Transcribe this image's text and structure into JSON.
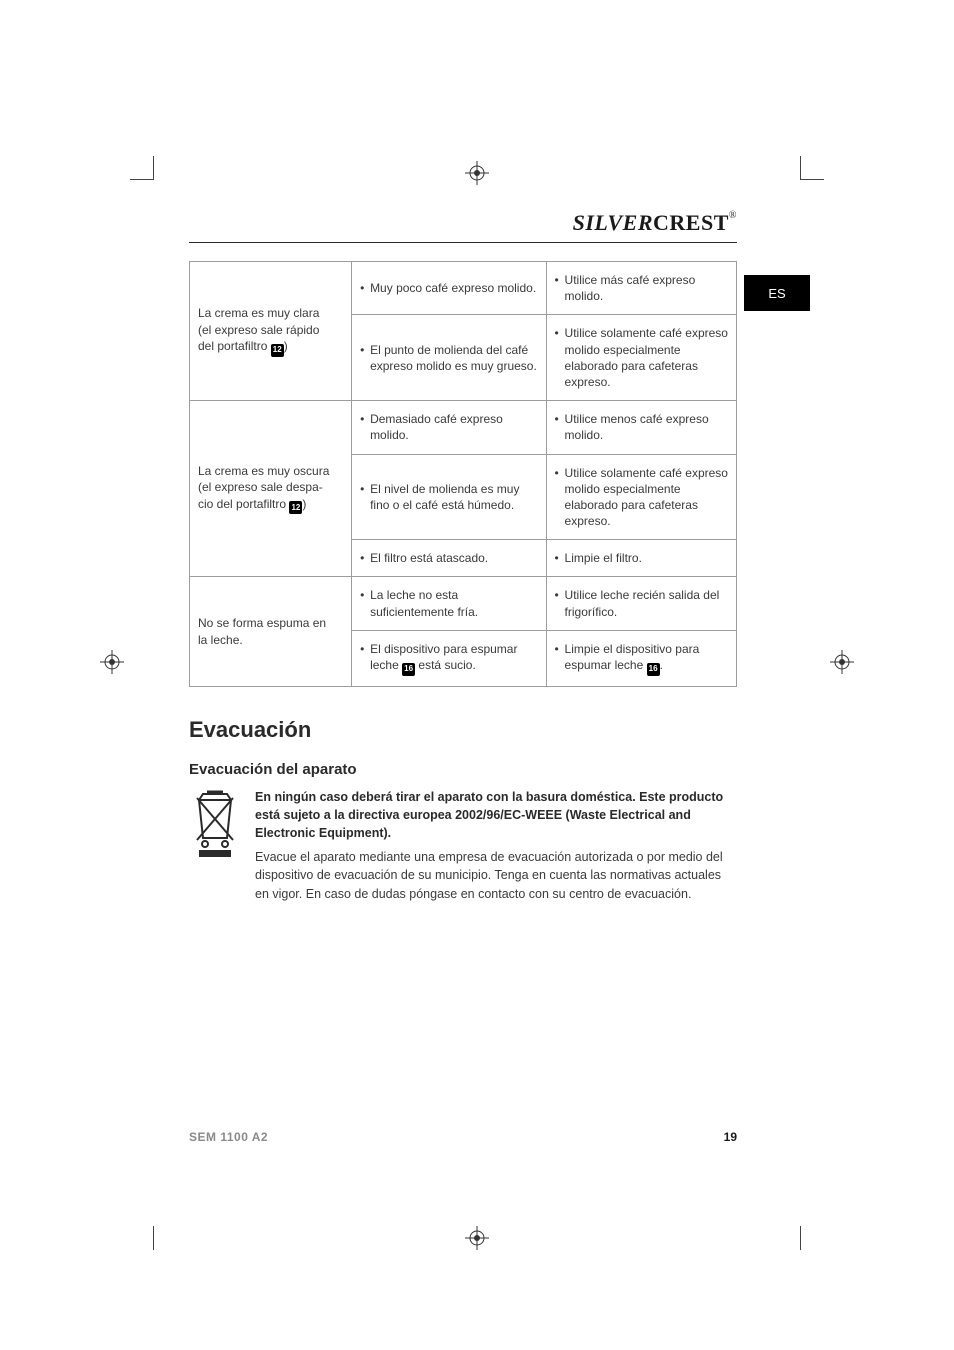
{
  "brand": {
    "silver": "SILVER",
    "crest": "CREST",
    "r": "®"
  },
  "lang_tab": "ES",
  "table": {
    "rows": [
      {
        "problem": [
          "La crema es muy clara",
          "(el expreso sale rápido",
          "del portafiltro ",
          "12",
          ")"
        ],
        "causes": [
          "Muy poco café expreso molido.",
          "El punto de molienda del café expreso molido es muy grueso."
        ],
        "solutions": [
          "Utilice más café expreso molido.",
          "Utilice solamente café expreso molido especialmente elaborado para cafeteras expreso."
        ]
      },
      {
        "problem": [
          "La crema es muy oscura",
          "(el expreso sale despa-",
          "cio del portafiltro ",
          "12",
          ")"
        ],
        "causes": [
          "Demasiado café expreso molido.",
          "El nivel de molienda es muy fino o el café está húmedo.",
          "El filtro está atascado."
        ],
        "solutions": [
          "Utilice menos café expreso molido.",
          "Utilice solamente café expreso molido especialmente elaborado para cafeteras expreso.",
          "Limpie el filtro."
        ]
      },
      {
        "problem": [
          "No se forma espuma en",
          "la leche."
        ],
        "causes": [
          "La leche no esta suficientemente fría.",
          "El dispositivo para espumar leche {16} está sucio."
        ],
        "solutions": [
          "Utilice leche recién salida del frigorífico.",
          "Limpie el dispositivo para espumar leche {16}."
        ]
      }
    ]
  },
  "section_title": "Evacuación",
  "subsection_title": "Evacuación del aparato",
  "disposal": {
    "bold": "En ningún caso deberá tirar el aparato con la basura doméstica. Este producto está sujeto a la directiva europea 2002/96/EC-WEEE (Waste Electrical and Electronic Equipment).",
    "regular": "Evacue el aparato mediante una empresa de evacuación autorizada o por medio del dispositivo de evacuación de su municipio. Tenga en cuenta las normativas actuales en vigor. En caso de dudas póngase en contacto con su centro de evacuación."
  },
  "footer": {
    "model": "SEM 1100 A2",
    "page": "19"
  },
  "colors": {
    "text": "#3a3a3a",
    "heading": "#2a2a2a",
    "muted": "#8a8a8a",
    "border": "#9c9c9c",
    "tab_bg": "#000000",
    "tab_fg": "#ffffff",
    "bg": "#ffffff"
  }
}
